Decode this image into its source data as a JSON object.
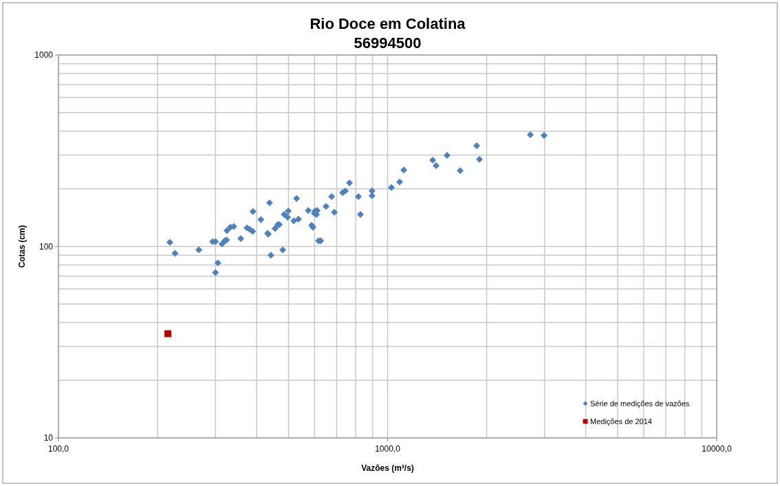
{
  "chart_data": {
    "type": "scatter",
    "title": "Rio Doce em Colatina",
    "subtitle": "56994500",
    "xlabel": "Vazões (m³/s)",
    "ylabel": "Cotas (cm)",
    "log": "xy",
    "grid": true,
    "legend": "bottom right",
    "xlim": [
      100,
      10000
    ],
    "xticks": [
      {
        "value": 100,
        "label": "100,0"
      },
      {
        "value": 1000,
        "label": "1000,0"
      },
      {
        "value": 10000,
        "label": "10000,0"
      }
    ],
    "ylim": [
      10,
      1000
    ],
    "yticks": [
      10,
      100,
      1000
    ],
    "series": [
      {
        "name": "Série de medições de vazões",
        "color": "#4f81bd",
        "marker": "diamond",
        "x": [
          218,
          226,
          267,
          294,
          300,
          300,
          305,
          314,
          320,
          325,
          324,
          333,
          341,
          358,
          374,
          381,
          390,
          389,
          412,
          432,
          434,
          438,
          442,
          455,
          464,
          469,
          480,
          485,
          497,
          499,
          519,
          529,
          536,
          574,
          588,
          593,
          599,
          602,
          608,
          611,
          617,
          626,
          650,
          676,
          689,
          730,
          744,
          766,
          815,
          827,
          897,
          897,
          1027,
          1088,
          1120,
          1371,
          1404,
          1516,
          1662,
          1865,
          1901,
          2714,
          2988
        ],
        "values": [
          105,
          92,
          96,
          106,
          106,
          73,
          82,
          103,
          107,
          121,
          108,
          126,
          127,
          110,
          125,
          123,
          152,
          120,
          138,
          117,
          116,
          169,
          90,
          124,
          130,
          130,
          96,
          147,
          142,
          153,
          136,
          178,
          139,
          154,
          129,
          126,
          149,
          153,
          147,
          154,
          107,
          107,
          162,
          182,
          151,
          191,
          195,
          215,
          182,
          147,
          184,
          195,
          203,
          217,
          251,
          282,
          264,
          299,
          249,
          336,
          285,
          383,
          380
        ]
      },
      {
        "name": "Medições de 2014",
        "color": "#c00000",
        "marker": "square",
        "x": [
          215
        ],
        "values": [
          35
        ]
      }
    ]
  }
}
